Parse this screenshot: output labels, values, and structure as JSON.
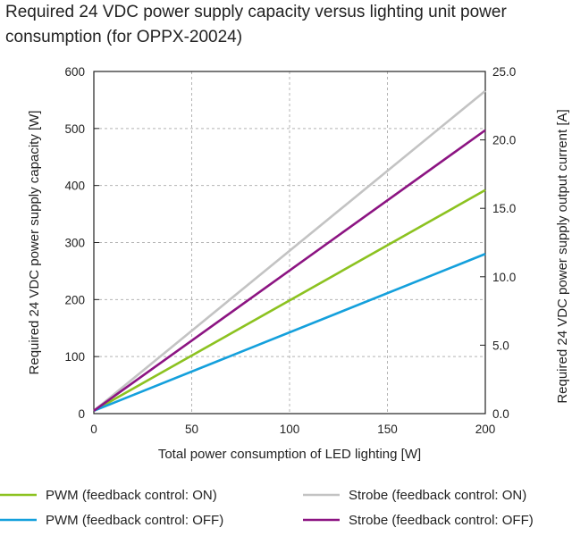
{
  "chart_data": {
    "type": "line",
    "title": "Required 24 VDC power supply capacity versus lighting unit power consumption (for OPPX-20024)",
    "xlabel": "Total power consumption of LED lighting [W]",
    "ylabel": "Required 24 VDC power supply capacity [W]",
    "y2label": "Required 24 VDC power supply output current [A]",
    "xlim": [
      0,
      200
    ],
    "ylim": [
      0,
      600
    ],
    "y2lim": [
      0,
      25
    ],
    "xticks": [
      "0",
      "50",
      "100",
      "150",
      "200"
    ],
    "yticks": [
      "0",
      "100",
      "200",
      "300",
      "400",
      "500",
      "600"
    ],
    "y2ticks": [
      "0.0",
      "5.0",
      "10.0",
      "15.0",
      "20.0",
      "25.0"
    ],
    "grid": true,
    "legend_position": "bottom",
    "series": [
      {
        "name": "PWM (feedback control: ON)",
        "color": "#8cc220",
        "x": [
          0,
          200
        ],
        "y": [
          5,
          392
        ]
      },
      {
        "name": "PWM (feedback control: OFF)",
        "color": "#14a0dc",
        "x": [
          0,
          200
        ],
        "y": [
          5,
          280
        ]
      },
      {
        "name": "Strobe (feedback control: ON)",
        "color": "#c3c3c3",
        "x": [
          0,
          200
        ],
        "y": [
          5,
          566
        ]
      },
      {
        "name": "Strobe (feedback control: OFF)",
        "color": "#8c1482",
        "x": [
          0,
          200
        ],
        "y": [
          5,
          497
        ]
      }
    ]
  }
}
